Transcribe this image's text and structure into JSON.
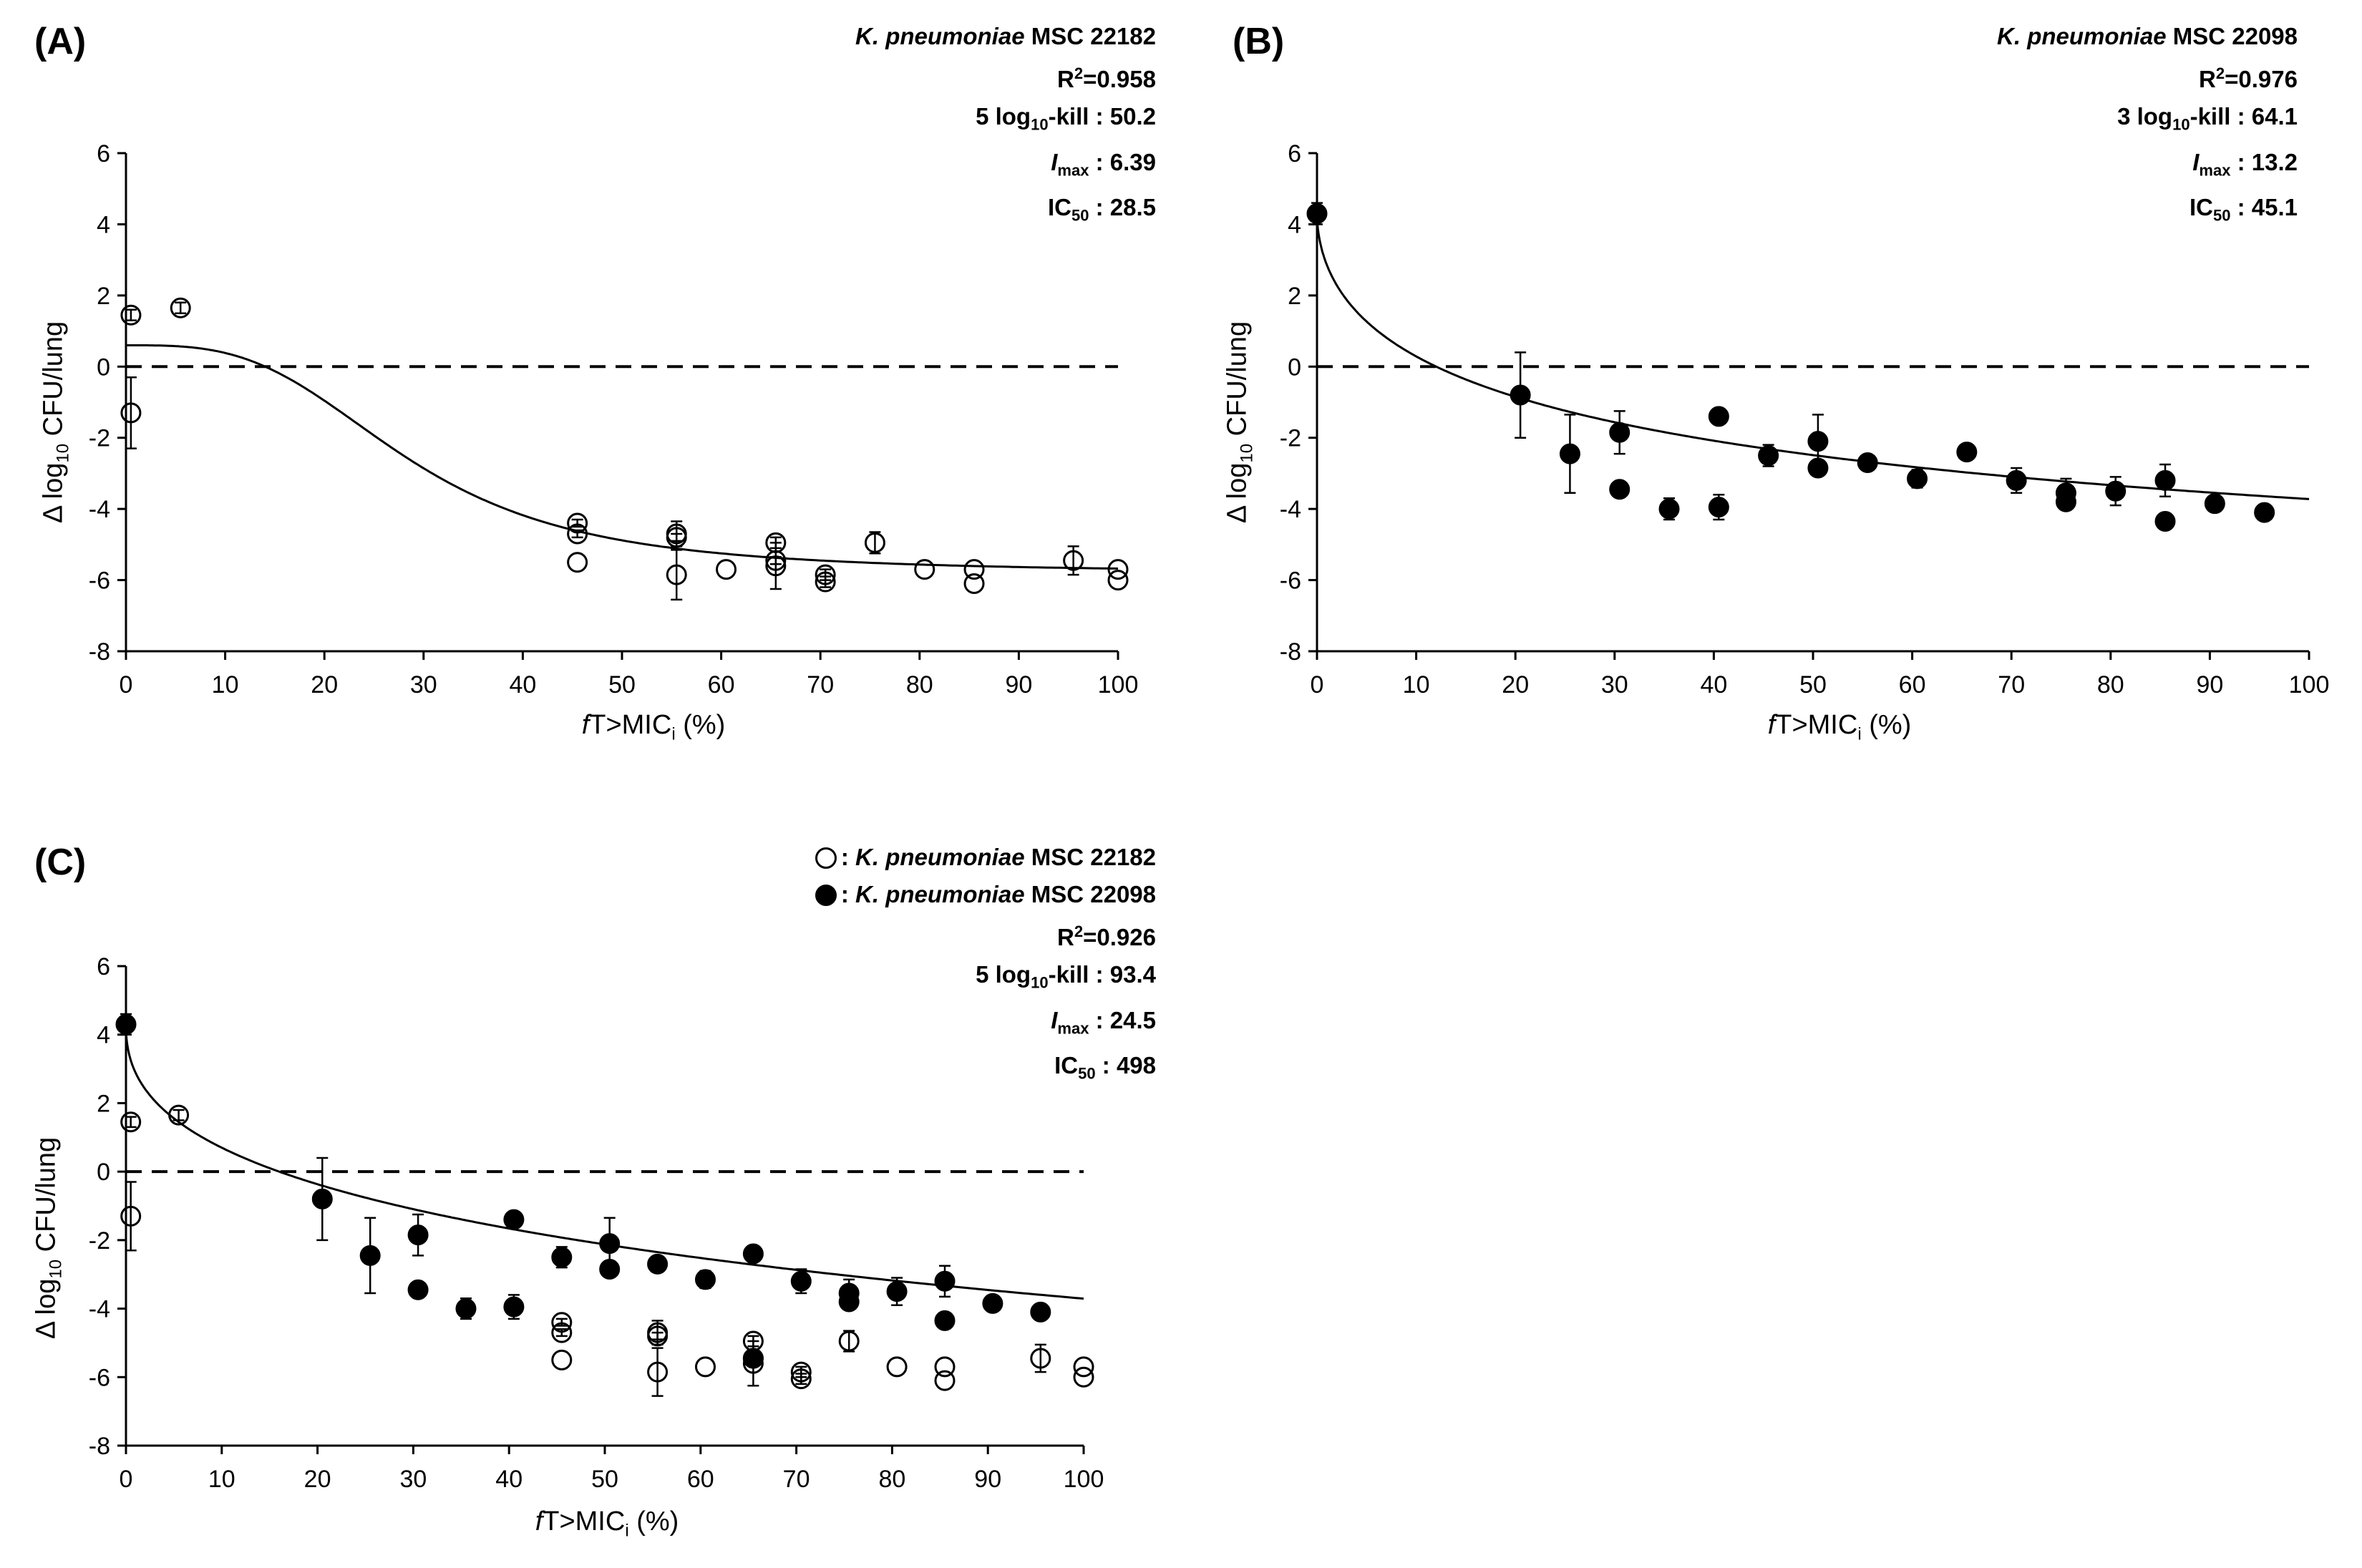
{
  "chart_data": [
    {
      "type": "scatter",
      "panel_label": "(A)",
      "strain_species": "K. pneumoniae",
      "strain_id": "MSC 22182",
      "stats": {
        "r2": "R²=0.958",
        "r2_label": "R",
        "r2_value": "=0.958",
        "kill_prefix": "5 log",
        "kill_suffix": "-kill",
        "kill_value": ": 50.2",
        "imax_value": ": 6.39",
        "ic50_value": ": 28.5"
      },
      "xlabel": "fT>MICi (%)",
      "xlabel_f": "f",
      "xlabel_mid": "T>MIC",
      "xlabel_sub": "i",
      "xlabel_end": " (%)",
      "ylabel": "Δ log10 CFU/lung",
      "ylabel_pre": "Δ log",
      "ylabel_sub": "10",
      "ylabel_post": " CFU/lung",
      "xlim": [
        0,
        100
      ],
      "ylim": [
        -8,
        6
      ],
      "xticks": [
        "0",
        "10",
        "20",
        "30",
        "40",
        "50",
        "60",
        "70",
        "80",
        "90",
        "100"
      ],
      "yticks": [
        "6",
        "4",
        "2",
        "0",
        "-2",
        "-4",
        "-6",
        "-8"
      ],
      "reference_line_y": 0,
      "fit": {
        "model": "Imax",
        "E0": 0.6,
        "Imax": 6.39,
        "IC50": 28.5,
        "hill": 3.2
      },
      "series": [
        {
          "name": "K. pneumoniae MSC 22182",
          "marker": "open-circle",
          "points": [
            {
              "x": 0.5,
              "y": 1.45,
              "err": 0.15
            },
            {
              "x": 0.5,
              "y": -1.3,
              "err": 1.0
            },
            {
              "x": 5.5,
              "y": 1.65,
              "err": 0.15
            },
            {
              "x": 45.5,
              "y": -4.4,
              "err": 0.1
            },
            {
              "x": 45.5,
              "y": -4.7,
              "err": 0.1
            },
            {
              "x": 45.5,
              "y": -5.5,
              "err": 0
            },
            {
              "x": 55.5,
              "y": -4.7,
              "err": 0.35
            },
            {
              "x": 55.5,
              "y": -4.8,
              "err": 0.1
            },
            {
              "x": 55.5,
              "y": -5.85,
              "err": 0.7
            },
            {
              "x": 60.5,
              "y": -5.7,
              "err": 0
            },
            {
              "x": 65.5,
              "y": -4.95,
              "err": 0.15
            },
            {
              "x": 65.5,
              "y": -5.45,
              "err": 0.1
            },
            {
              "x": 65.5,
              "y": -5.6,
              "err": 0.65
            },
            {
              "x": 70.5,
              "y": -5.85,
              "err": 0.15
            },
            {
              "x": 70.5,
              "y": -6.05,
              "err": 0.15
            },
            {
              "x": 75.5,
              "y": -4.95,
              "err": 0.3
            },
            {
              "x": 80.5,
              "y": -5.7,
              "err": 0
            },
            {
              "x": 85.5,
              "y": -5.7,
              "err": 0
            },
            {
              "x": 85.5,
              "y": -6.1,
              "err": 0
            },
            {
              "x": 95.5,
              "y": -5.45,
              "err": 0.4
            },
            {
              "x": 100,
              "y": -5.7,
              "err": 0
            },
            {
              "x": 100,
              "y": -6.0,
              "err": 0
            }
          ]
        }
      ]
    },
    {
      "type": "scatter",
      "panel_label": "(B)",
      "strain_species": "K. pneumoniae",
      "strain_id": "MSC 22098",
      "stats": {
        "r2_label": "R",
        "r2_value": "=0.976",
        "kill_prefix": "3 log",
        "kill_suffix": "-kill",
        "kill_value": ": 64.1",
        "imax_value": ": 13.2",
        "ic50_value": ": 45.1"
      },
      "xlabel_f": "f",
      "xlabel_mid": "T>MIC",
      "xlabel_sub": "i",
      "xlabel_end": " (%)",
      "ylabel_pre": "Δ log",
      "ylabel_sub": "10",
      "ylabel_post": " CFU/lung",
      "xlim": [
        0,
        100
      ],
      "ylim": [
        -8,
        6
      ],
      "xticks": [
        "0",
        "10",
        "20",
        "30",
        "40",
        "50",
        "60",
        "70",
        "80",
        "90",
        "100"
      ],
      "yticks": [
        "6",
        "4",
        "2",
        "0",
        "-2",
        "-4",
        "-6",
        "-8"
      ],
      "reference_line_y": 0,
      "fit": {
        "model": "Imax",
        "E0": 4.3,
        "Imax": 13.2,
        "IC50": 45.1,
        "hill": 0.55
      },
      "series": [
        {
          "name": "K. pneumoniae MSC 22098",
          "marker": "filled-circle",
          "points": [
            {
              "x": 0,
              "y": 4.3,
              "err": 0.3
            },
            {
              "x": 20.5,
              "y": -0.8,
              "err": 1.2
            },
            {
              "x": 25.5,
              "y": -2.45,
              "err": 1.1
            },
            {
              "x": 30.5,
              "y": -1.85,
              "err": 0.6
            },
            {
              "x": 30.5,
              "y": -3.45,
              "err": 0
            },
            {
              "x": 35.5,
              "y": -4.0,
              "err": 0.3
            },
            {
              "x": 40.5,
              "y": -1.4,
              "err": 0.15
            },
            {
              "x": 40.5,
              "y": -3.95,
              "err": 0.35
            },
            {
              "x": 45.5,
              "y": -2.5,
              "err": 0.3
            },
            {
              "x": 50.5,
              "y": -2.1,
              "err": 0.75
            },
            {
              "x": 50.5,
              "y": -2.85,
              "err": 0
            },
            {
              "x": 55.5,
              "y": -2.7,
              "err": 0
            },
            {
              "x": 60.5,
              "y": -3.15,
              "err": 0.25
            },
            {
              "x": 65.5,
              "y": -2.4,
              "err": 0
            },
            {
              "x": 70.5,
              "y": -3.2,
              "err": 0.35
            },
            {
              "x": 75.5,
              "y": -3.55,
              "err": 0.4
            },
            {
              "x": 75.5,
              "y": -3.8,
              "err": 0
            },
            {
              "x": 80.5,
              "y": -3.5,
              "err": 0.4
            },
            {
              "x": 85.5,
              "y": -3.2,
              "err": 0.45
            },
            {
              "x": 85.5,
              "y": -4.35,
              "err": 0
            },
            {
              "x": 90.5,
              "y": -3.85,
              "err": 0
            },
            {
              "x": 95.5,
              "y": -4.1,
              "err": 0
            }
          ]
        }
      ]
    },
    {
      "type": "scatter",
      "panel_label": "(C)",
      "legend": [
        {
          "species": "K. pneumoniae",
          "id": "MSC 22182",
          "marker": "open-circle"
        },
        {
          "species": "K. pneumoniae",
          "id": "MSC 22098",
          "marker": "filled-circle"
        }
      ],
      "stats": {
        "r2_label": "R",
        "r2_value": "=0.926",
        "kill_prefix": "5 log",
        "kill_suffix": "-kill",
        "kill_value": ": 93.4",
        "imax_value": ": 24.5",
        "ic50_value": ": 498"
      },
      "xlabel_f": "f",
      "xlabel_mid": "T>MIC",
      "xlabel_sub": "i",
      "xlabel_end": " (%)",
      "ylabel_pre": "Δ log",
      "ylabel_sub": "10",
      "ylabel_post": " CFU/lung",
      "xlim": [
        0,
        100
      ],
      "ylim": [
        -8,
        6
      ],
      "xticks": [
        "0",
        "10",
        "20",
        "30",
        "40",
        "50",
        "60",
        "70",
        "80",
        "90",
        "100"
      ],
      "yticks": [
        "6",
        "4",
        "2",
        "0",
        "-2",
        "-4",
        "-6",
        "-8"
      ],
      "reference_line_y": 0,
      "fit": {
        "model": "Imax",
        "E0": 4.3,
        "Imax": 24.5,
        "IC50": 498,
        "hill": 0.45
      },
      "series": [
        {
          "name": "K. pneumoniae MSC 22182",
          "marker": "open-circle",
          "points": [
            {
              "x": 0.5,
              "y": 1.45,
              "err": 0.15
            },
            {
              "x": 0.5,
              "y": -1.3,
              "err": 1.0
            },
            {
              "x": 5.5,
              "y": 1.65,
              "err": 0.15
            },
            {
              "x": 45.5,
              "y": -4.4,
              "err": 0.1
            },
            {
              "x": 45.5,
              "y": -4.7,
              "err": 0.1
            },
            {
              "x": 45.5,
              "y": -5.5,
              "err": 0
            },
            {
              "x": 55.5,
              "y": -4.7,
              "err": 0.35
            },
            {
              "x": 55.5,
              "y": -4.8,
              "err": 0.1
            },
            {
              "x": 55.5,
              "y": -5.85,
              "err": 0.7
            },
            {
              "x": 60.5,
              "y": -5.7,
              "err": 0
            },
            {
              "x": 65.5,
              "y": -4.95,
              "err": 0.15
            },
            {
              "x": 65.5,
              "y": -5.45,
              "err": 0.1
            },
            {
              "x": 65.5,
              "y": -5.6,
              "err": 0.65
            },
            {
              "x": 70.5,
              "y": -5.85,
              "err": 0.15
            },
            {
              "x": 70.5,
              "y": -6.05,
              "err": 0.15
            },
            {
              "x": 75.5,
              "y": -4.95,
              "err": 0.3
            },
            {
              "x": 80.5,
              "y": -5.7,
              "err": 0
            },
            {
              "x": 85.5,
              "y": -5.7,
              "err": 0
            },
            {
              "x": 85.5,
              "y": -6.1,
              "err": 0
            },
            {
              "x": 95.5,
              "y": -5.45,
              "err": 0.4
            },
            {
              "x": 100,
              "y": -5.7,
              "err": 0
            },
            {
              "x": 100,
              "y": -6.0,
              "err": 0
            }
          ]
        },
        {
          "name": "K. pneumoniae MSC 22098",
          "marker": "filled-circle",
          "points": [
            {
              "x": 0,
              "y": 4.3,
              "err": 0.3
            },
            {
              "x": 20.5,
              "y": -0.8,
              "err": 1.2
            },
            {
              "x": 25.5,
              "y": -2.45,
              "err": 1.1
            },
            {
              "x": 30.5,
              "y": -1.85,
              "err": 0.6
            },
            {
              "x": 30.5,
              "y": -3.45,
              "err": 0
            },
            {
              "x": 35.5,
              "y": -4.0,
              "err": 0.3
            },
            {
              "x": 40.5,
              "y": -1.4,
              "err": 0.15
            },
            {
              "x": 40.5,
              "y": -3.95,
              "err": 0.35
            },
            {
              "x": 45.5,
              "y": -2.5,
              "err": 0.3
            },
            {
              "x": 50.5,
              "y": -2.1,
              "err": 0.75
            },
            {
              "x": 50.5,
              "y": -2.85,
              "err": 0
            },
            {
              "x": 55.5,
              "y": -2.7,
              "err": 0
            },
            {
              "x": 60.5,
              "y": -3.15,
              "err": 0.25
            },
            {
              "x": 65.5,
              "y": -2.4,
              "err": 0
            },
            {
              "x": 65.5,
              "y": -5.45,
              "err": 0
            },
            {
              "x": 70.5,
              "y": -3.2,
              "err": 0.35
            },
            {
              "x": 75.5,
              "y": -3.55,
              "err": 0.4
            },
            {
              "x": 75.5,
              "y": -3.8,
              "err": 0
            },
            {
              "x": 80.5,
              "y": -3.5,
              "err": 0.4
            },
            {
              "x": 85.5,
              "y": -3.2,
              "err": 0.45
            },
            {
              "x": 85.5,
              "y": -4.35,
              "err": 0
            },
            {
              "x": 90.5,
              "y": -3.85,
              "err": 0
            },
            {
              "x": 95.5,
              "y": -4.1,
              "err": 0
            }
          ]
        }
      ]
    }
  ]
}
